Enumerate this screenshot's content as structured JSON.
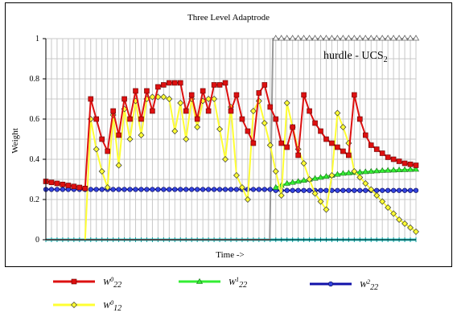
{
  "chart_data": {
    "type": "line",
    "title": "Three Level Adaptrode",
    "xlabel": "Time ->",
    "ylabel": "Weight",
    "ylim": [
      0,
      1
    ],
    "yticks": [
      "0",
      "0.2",
      "0.4",
      "0.6",
      "0.8",
      "1"
    ],
    "grid": true,
    "annotation": {
      "text": "hurdle - UCS",
      "subscript": "2"
    },
    "series": [
      {
        "name_main": "W",
        "name_sup": "0",
        "name_sub": "22",
        "color": "#dd1010",
        "marker": "plus",
        "values": [
          0.29,
          0.285,
          0.28,
          0.275,
          0.27,
          0.265,
          0.26,
          0.255,
          0.7,
          0.6,
          0.5,
          0.44,
          0.64,
          0.52,
          0.7,
          0.6,
          0.74,
          0.6,
          0.74,
          0.64,
          0.76,
          0.77,
          0.78,
          0.78,
          0.78,
          0.64,
          0.72,
          0.6,
          0.74,
          0.64,
          0.77,
          0.77,
          0.78,
          0.64,
          0.72,
          0.6,
          0.54,
          0.48,
          0.73,
          0.77,
          0.66,
          0.6,
          0.48,
          0.46,
          0.56,
          0.42,
          0.72,
          0.64,
          0.58,
          0.54,
          0.5,
          0.48,
          0.46,
          0.44,
          0.42,
          0.72,
          0.6,
          0.52,
          0.47,
          0.45,
          0.43,
          0.41,
          0.4,
          0.39,
          0.38,
          0.375,
          0.37
        ]
      },
      {
        "name_main": "W",
        "name_sup": "0",
        "name_sub": "12",
        "color": "#ffff33",
        "marker": "diamond",
        "values": [
          0,
          0,
          0,
          0,
          0,
          0,
          0,
          0,
          0.6,
          0.45,
          0.34,
          0.26,
          0.62,
          0.37,
          0.65,
          0.5,
          0.69,
          0.52,
          0.7,
          0.71,
          0.71,
          0.71,
          0.7,
          0.54,
          0.68,
          0.5,
          0.7,
          0.56,
          0.69,
          0.7,
          0.7,
          0.55,
          0.4,
          0.66,
          0.32,
          0.26,
          0.2,
          0.64,
          0.69,
          0.58,
          0.47,
          0.34,
          0.22,
          0.68,
          0.56,
          0.45,
          0.38,
          0.3,
          0.23,
          0.19,
          0.15,
          0.32,
          0.63,
          0.56,
          0.48,
          0.34,
          0.31,
          0.28,
          0.25,
          0.22,
          0.19,
          0.16,
          0.13,
          0.1,
          0.08,
          0.06,
          0.04
        ]
      },
      {
        "name_main": "W",
        "name_sup": "1",
        "name_sub": "22",
        "color": "#33ee33",
        "marker": "triangle",
        "values": [
          0,
          0,
          0,
          0,
          0,
          0,
          0,
          0,
          0,
          0,
          0,
          0,
          0,
          0,
          0,
          0,
          0,
          0,
          0,
          0,
          0,
          0,
          0,
          0,
          0,
          0,
          0,
          0,
          0,
          0,
          0,
          0,
          0,
          0,
          0,
          0,
          0,
          0,
          0,
          0,
          0,
          0.26,
          0.27,
          0.28,
          0.285,
          0.29,
          0.295,
          0.3,
          0.305,
          0.31,
          0.315,
          0.32,
          0.325,
          0.33,
          0.332,
          0.334,
          0.336,
          0.338,
          0.34,
          0.342,
          0.344,
          0.345,
          0.346,
          0.347,
          0.348,
          0.349,
          0.35
        ]
      },
      {
        "name_main": "W",
        "name_sup": "2",
        "name_sub": "22",
        "color": "#1111aa",
        "marker": "circle",
        "values": [
          0.25,
          0.25,
          0.25,
          0.25,
          0.25,
          0.25,
          0.25,
          0.25,
          0.25,
          0.25,
          0.25,
          0.25,
          0.25,
          0.25,
          0.25,
          0.25,
          0.25,
          0.25,
          0.25,
          0.25,
          0.25,
          0.25,
          0.25,
          0.25,
          0.25,
          0.25,
          0.25,
          0.25,
          0.25,
          0.25,
          0.25,
          0.25,
          0.25,
          0.25,
          0.25,
          0.25,
          0.25,
          0.25,
          0.25,
          0.25,
          0.25,
          0.245,
          0.245,
          0.245,
          0.245,
          0.245,
          0.245,
          0.245,
          0.245,
          0.245,
          0.245,
          0.245,
          0.245,
          0.245,
          0.245,
          0.245,
          0.245,
          0.245,
          0.245,
          0.245,
          0.245,
          0.245,
          0.245,
          0.245,
          0.245,
          0.245,
          0.245
        ]
      }
    ],
    "hurdle_series": {
      "color": "#999999",
      "marker": "triangle-outline",
      "start_index": 41,
      "value": 1.0
    },
    "baseline_series": {
      "color": "#33dddd",
      "value": 0
    }
  }
}
